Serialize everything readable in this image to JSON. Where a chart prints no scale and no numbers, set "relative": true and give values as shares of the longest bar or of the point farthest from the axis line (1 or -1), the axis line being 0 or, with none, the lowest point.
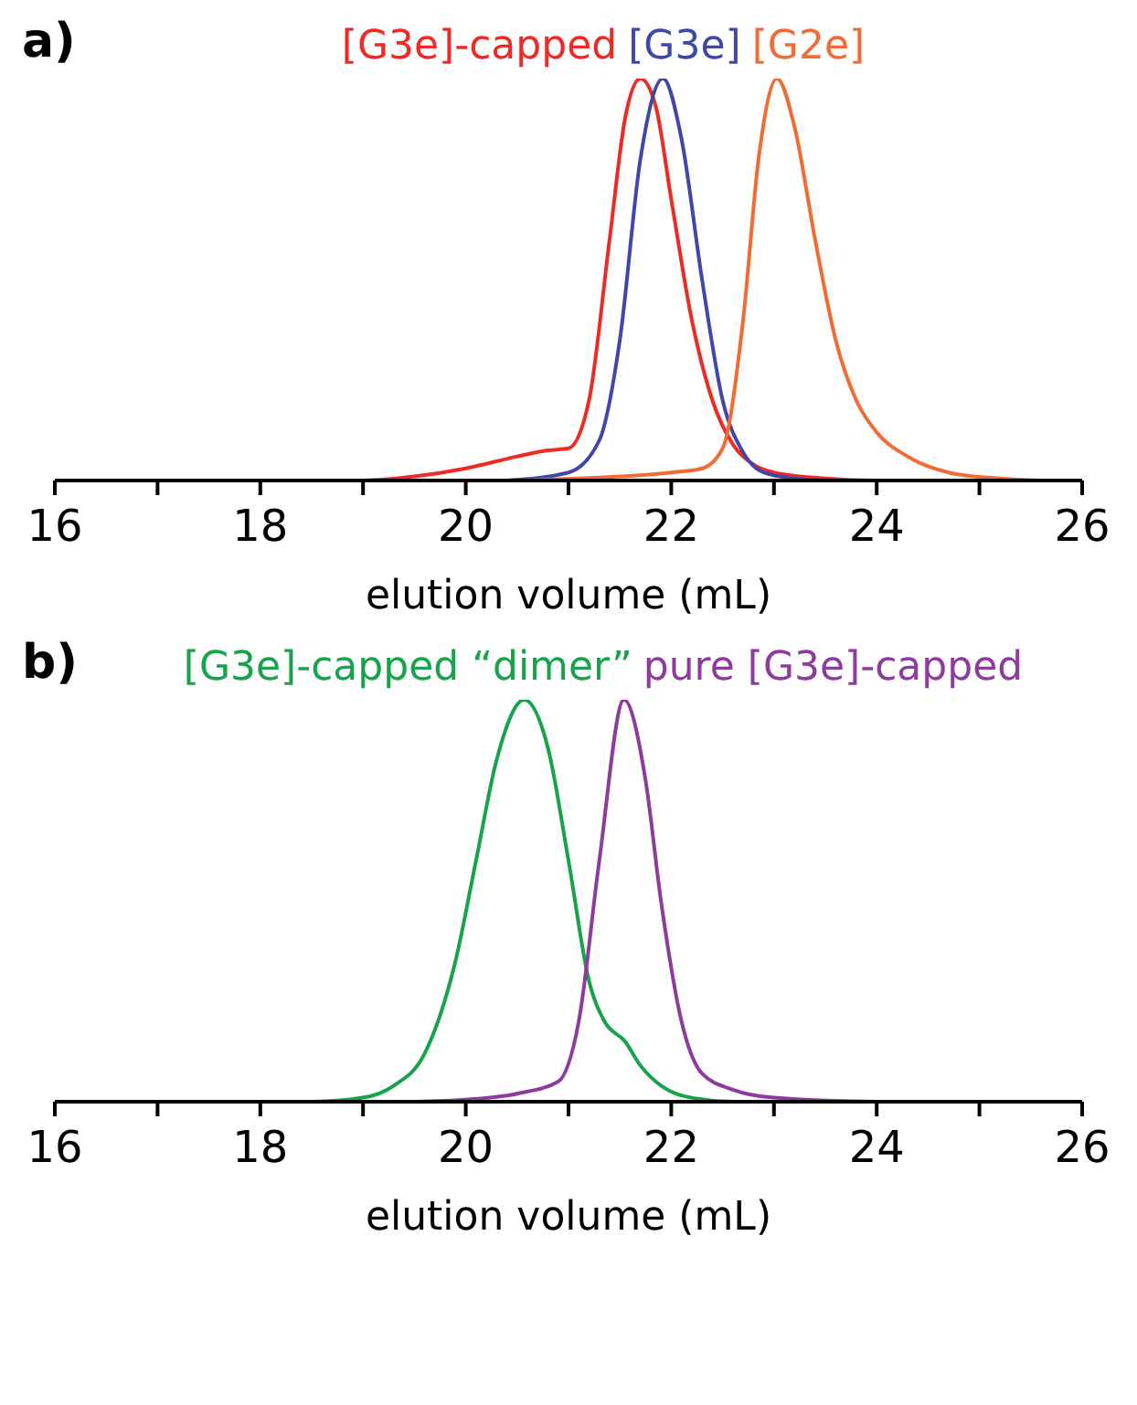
{
  "chart_data": [
    {
      "type": "line",
      "title": "a)",
      "xlabel": "elution volume (mL)",
      "relative": true,
      "legend": "top",
      "marker": "none",
      "line_style": "solid",
      "grid": false,
      "xlim": [
        16,
        26
      ],
      "xticks": [
        16,
        {
          "value": 17,
          "label": null
        },
        18,
        {
          "value": 19,
          "label": null
        },
        20,
        {
          "value": 21,
          "label": null
        },
        22,
        {
          "value": 23,
          "label": null
        },
        24,
        {
          "value": 25,
          "label": null
        },
        26
      ],
      "series": [
        {
          "name": "[G3e]-capped",
          "color": "#ee2a24",
          "x": [
            16,
            19.0,
            19.5,
            20.0,
            20.5,
            20.8,
            21.0,
            21.2,
            21.4,
            21.55,
            21.7,
            21.85,
            22.0,
            22.2,
            22.4,
            22.6,
            22.8,
            23.0,
            23.5,
            24,
            26
          ],
          "values": [
            0,
            0,
            0.01,
            0.03,
            0.06,
            0.075,
            0.08,
            0.2,
            0.6,
            0.9,
            1,
            0.93,
            0.7,
            0.4,
            0.2,
            0.09,
            0.04,
            0.02,
            0.005,
            0,
            0
          ]
        },
        {
          "name": "[G3e]",
          "color": "#3f47a8",
          "x": [
            20.4,
            21.0,
            21.3,
            21.5,
            21.7,
            21.92,
            22.1,
            22.3,
            22.5,
            22.7,
            22.9,
            23.2,
            23.5
          ],
          "values": [
            0,
            0.02,
            0.1,
            0.35,
            0.8,
            1,
            0.85,
            0.5,
            0.2,
            0.07,
            0.02,
            0.005,
            0
          ]
        },
        {
          "name": "[G2e]",
          "color": "#f26b35",
          "x": [
            20.5,
            21.5,
            22.0,
            22.3,
            22.5,
            22.7,
            22.85,
            23.03,
            23.2,
            23.4,
            23.6,
            23.8,
            24.0,
            24.3,
            24.7,
            25.2,
            25.6
          ],
          "values": [
            0,
            0.01,
            0.02,
            0.03,
            0.08,
            0.4,
            0.8,
            1,
            0.88,
            0.6,
            0.35,
            0.2,
            0.12,
            0.06,
            0.02,
            0.005,
            0
          ]
        }
      ]
    },
    {
      "type": "line",
      "title": "b)",
      "xlabel": "elution volume (mL)",
      "relative": true,
      "legend": "top",
      "marker": "none",
      "line_style": "solid",
      "grid": false,
      "xlim": [
        16,
        26
      ],
      "xticks": [
        16,
        {
          "value": 17,
          "label": null
        },
        18,
        {
          "value": 19,
          "label": null
        },
        20,
        {
          "value": 21,
          "label": null
        },
        22,
        {
          "value": 23,
          "label": null
        },
        24,
        {
          "value": 25,
          "label": null
        },
        26
      ],
      "series": [
        {
          "name": "[G3e]-capped “dimer”",
          "color": "#16a34a",
          "x": [
            16,
            18.5,
            19.0,
            19.3,
            19.6,
            19.9,
            20.1,
            20.3,
            20.57,
            20.8,
            21.0,
            21.2,
            21.35,
            21.55,
            21.7,
            21.9,
            22.2,
            22.6,
            26
          ],
          "values": [
            0,
            0,
            0.01,
            0.04,
            0.12,
            0.35,
            0.6,
            0.85,
            1,
            0.88,
            0.6,
            0.3,
            0.2,
            0.15,
            0.09,
            0.04,
            0.01,
            0,
            0
          ]
        },
        {
          "name": "pure [G3e]-capped",
          "color": "#8e3b9e",
          "x": [
            19.5,
            20.0,
            20.5,
            20.9,
            21.1,
            21.3,
            21.54,
            21.75,
            21.9,
            22.1,
            22.3,
            22.6,
            23.0,
            24,
            26
          ],
          "values": [
            0,
            0.005,
            0.02,
            0.05,
            0.2,
            0.6,
            1,
            0.8,
            0.5,
            0.2,
            0.07,
            0.03,
            0.01,
            0,
            0
          ]
        }
      ]
    }
  ]
}
